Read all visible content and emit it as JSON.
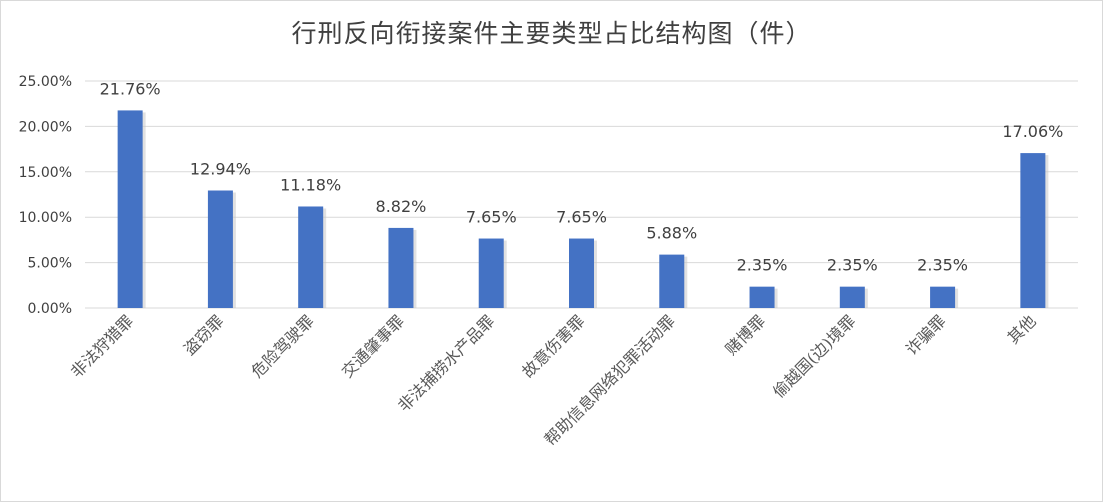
{
  "chart_data": {
    "type": "bar",
    "title": "行刑反向衔接案件主要类型占比结构图（件）",
    "xlabel": "",
    "ylabel": "",
    "ylim": [
      0,
      25
    ],
    "y_ticks": [
      "0.00%",
      "5.00%",
      "10.00%",
      "15.00%",
      "20.00%",
      "25.00%"
    ],
    "grid": true,
    "legend": "none",
    "categories": [
      "非法狩猎罪",
      "盗窃罪",
      "危险驾驶罪",
      "交通肇事罪",
      "非法捕捞水产品罪",
      "故意伤害罪",
      "帮助信息网络犯罪活动罪",
      "赌博罪",
      "偷越国(边)境罪",
      "诈骗罪",
      "其他"
    ],
    "values": [
      21.76,
      12.94,
      11.18,
      8.82,
      7.65,
      7.65,
      5.88,
      2.35,
      2.35,
      2.35,
      17.06
    ],
    "data_labels": [
      "21.76%",
      "12.94%",
      "11.18%",
      "8.82%",
      "7.65%",
      "7.65%",
      "5.88%",
      "2.35%",
      "2.35%",
      "2.35%",
      "17.06%"
    ],
    "colors": {
      "bar": "#4472c4",
      "grid": "#d9d9d9",
      "text": "#404040"
    }
  }
}
